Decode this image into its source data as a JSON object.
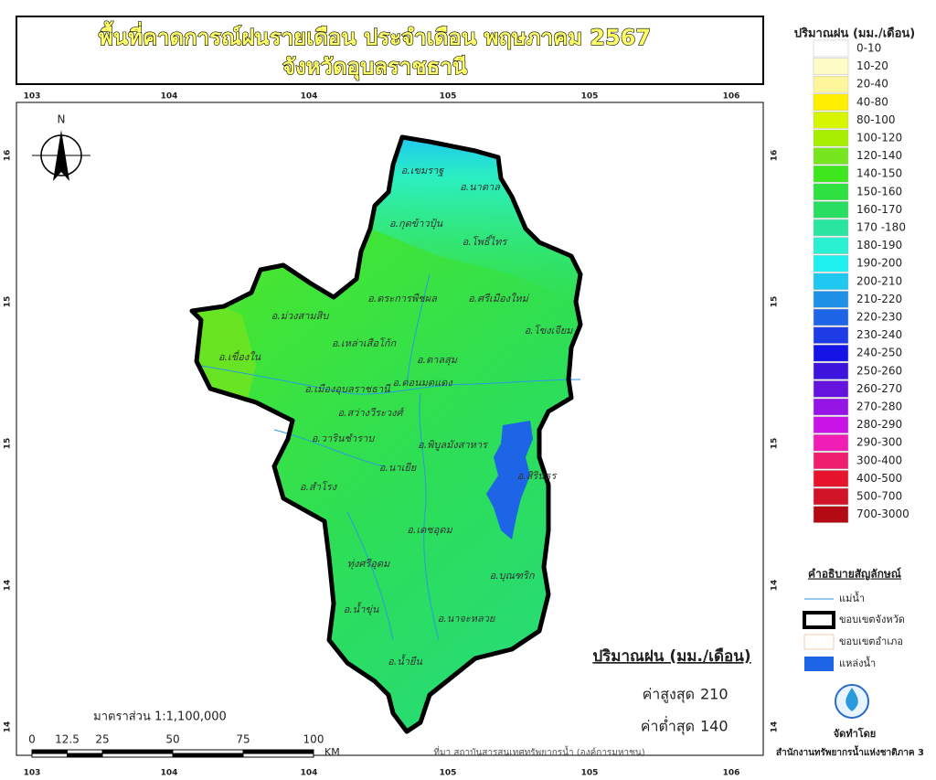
{
  "title": {
    "line1": "พื้นที่คาดการณ์ฝนรายเดือน ประจำเดือน พฤษภาคม 2567",
    "line2": "จังหวัดอุบลราชธานี"
  },
  "grid": {
    "top": [
      103,
      104,
      104,
      105,
      105,
      106
    ],
    "bottom": [
      103,
      104,
      104,
      105,
      105,
      106
    ],
    "left": [
      16,
      15,
      15,
      14,
      14
    ],
    "right": [
      16,
      15,
      15,
      14,
      14
    ]
  },
  "north": "N",
  "districts": [
    "อ.เขมราฐ",
    "อ.นาตาล",
    "อ.กุดข้าวปุ้น",
    "อ.โพธิ์ไทร",
    "อ.ตระการพืชผล",
    "อ.ศรีเมืองใหม่",
    "อ.ม่วงสามสิบ",
    "อ.โขงเจียม",
    "อ.เหล่าเสือโก้ก",
    "อ.เขื่องใน",
    "อ.ตาลสุม",
    "อ.ดอนมดแดง",
    "อ.เมืองอุบลราชธานี",
    "อ.สว่างวีระวงศ์",
    "อ.วารินชำราบ",
    "อ.พิบูลมังสาหาร",
    "อ.นาเยีย",
    "อ.สิรินธร",
    "อ.สำโรง",
    "อ.เดชอุดม",
    "ทุ่งศรีอุดม",
    "อ.บุณฑริก",
    "อ.น้ำขุ่น",
    "อ.นาจะหลวย",
    "อ.น้ำยืน"
  ],
  "rain_legend": {
    "title": "ปริมาณฝน (มม./เดือน)",
    "items": [
      {
        "label": "0-10",
        "color": "#ffffff"
      },
      {
        "label": "10-20",
        "color": "#fffcc8"
      },
      {
        "label": "20-40",
        "color": "#fff59a"
      },
      {
        "label": "40-80",
        "color": "#ffee00"
      },
      {
        "label": "80-100",
        "color": "#d8f500"
      },
      {
        "label": "100-120",
        "color": "#a8ee00"
      },
      {
        "label": "120-140",
        "color": "#78e61e"
      },
      {
        "label": "140-150",
        "color": "#3ee61e"
      },
      {
        "label": "150-160",
        "color": "#2ee040"
      },
      {
        "label": "160-170",
        "color": "#28de60"
      },
      {
        "label": "170 -180",
        "color": "#28e6a0"
      },
      {
        "label": "180-190",
        "color": "#28f0d0"
      },
      {
        "label": "190-200",
        "color": "#1ef0f0"
      },
      {
        "label": "200-210",
        "color": "#1ec8f0"
      },
      {
        "label": "210-220",
        "color": "#1e90e6"
      },
      {
        "label": "220-230",
        "color": "#1e64e6"
      },
      {
        "label": "230-240",
        "color": "#1e3ce6"
      },
      {
        "label": "240-250",
        "color": "#1414e6"
      },
      {
        "label": "250-260",
        "color": "#3c14dc"
      },
      {
        "label": "260-270",
        "color": "#6414dc"
      },
      {
        "label": "270-280",
        "color": "#9614e6"
      },
      {
        "label": "280-290",
        "color": "#c814e6"
      },
      {
        "label": "290-300",
        "color": "#f01eb4"
      },
      {
        "label": "300-400",
        "color": "#f01e6e"
      },
      {
        "label": "400-500",
        "color": "#e6142d"
      },
      {
        "label": "500-700",
        "color": "#d21428"
      },
      {
        "label": "700-3000",
        "color": "#b40a14"
      }
    ]
  },
  "symbol_legend": {
    "title": "คำอธิบายสัญลักษณ์",
    "items": [
      "แม่น้ำ",
      "ขอบเขตจังหวัด",
      "ขอบเขตอำเภอ",
      "แหล่งน้ำ"
    ]
  },
  "stats": {
    "title": "ปริมาณฝน (มม./เดือน)",
    "max_label": "ค่าสูงสุด",
    "max": 210,
    "min_label": "ค่าต่ำสุด",
    "min": 140
  },
  "scale": {
    "label": "มาตราส่วน 1:1,100,000",
    "ticks": [
      0,
      12.5,
      25,
      50,
      75,
      100
    ],
    "unit": "KM"
  },
  "source": "ที่มา  สถาบันสารสนเทศทรัพยากรน้ำ (องค์การมหาชน)",
  "credit": {
    "label": "จัดทำโดย",
    "org": "สำนักงานทรัพยากรน้ำแห่งชาติภาค 3"
  }
}
